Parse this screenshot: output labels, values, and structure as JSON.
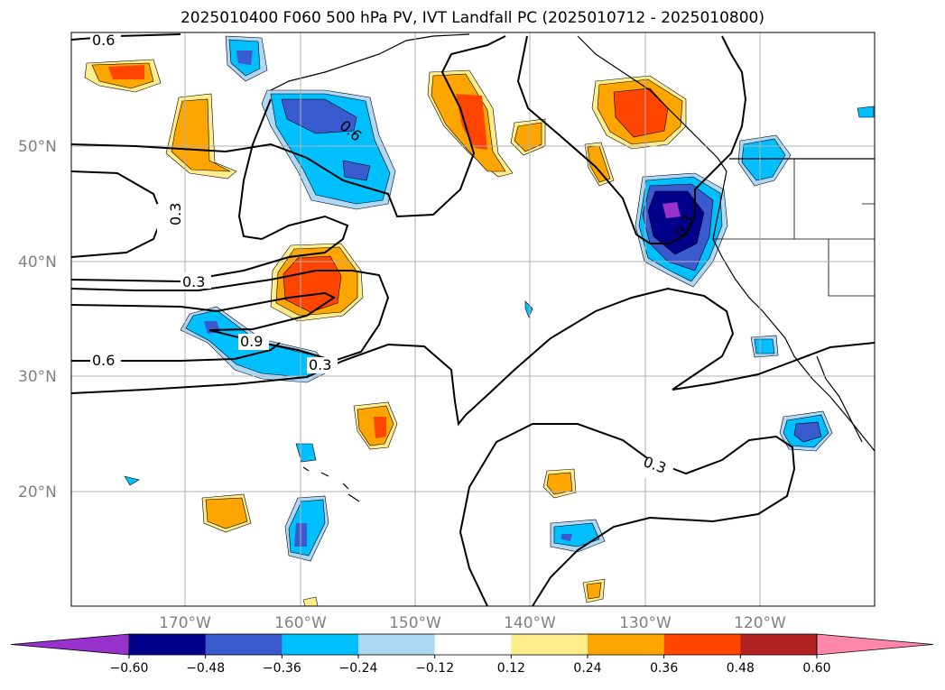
{
  "title": "2025010400 F060 500 hPa PV, IVT Landfall PC (2025010712 - 2025010800)",
  "map": {
    "lat_ticks": [
      "50°N",
      "40°N",
      "30°N",
      "20°N"
    ],
    "lon_ticks": [
      "170°W",
      "160°W",
      "150°W",
      "140°W",
      "130°W",
      "120°W"
    ],
    "contour_labels": [
      "0.6",
      "0.6",
      "0.3",
      "0.3",
      "0.9",
      "0.3",
      "0.6",
      "0.3",
      "0.3"
    ],
    "grid": true
  },
  "colorbar": {
    "colors": [
      "#9932cc",
      "#00008b",
      "#3a5bd0",
      "#00bfff",
      "#add8f6",
      "#ffffff",
      "#ffec8b",
      "#ffa500",
      "#ff4500",
      "#b22222",
      "#ff88aa"
    ],
    "labels": [
      "−0.60",
      "−0.48",
      "−0.36",
      "−0.24",
      "−0.12",
      "0.12",
      "0.24",
      "0.36",
      "0.48",
      "0.60"
    ]
  }
}
